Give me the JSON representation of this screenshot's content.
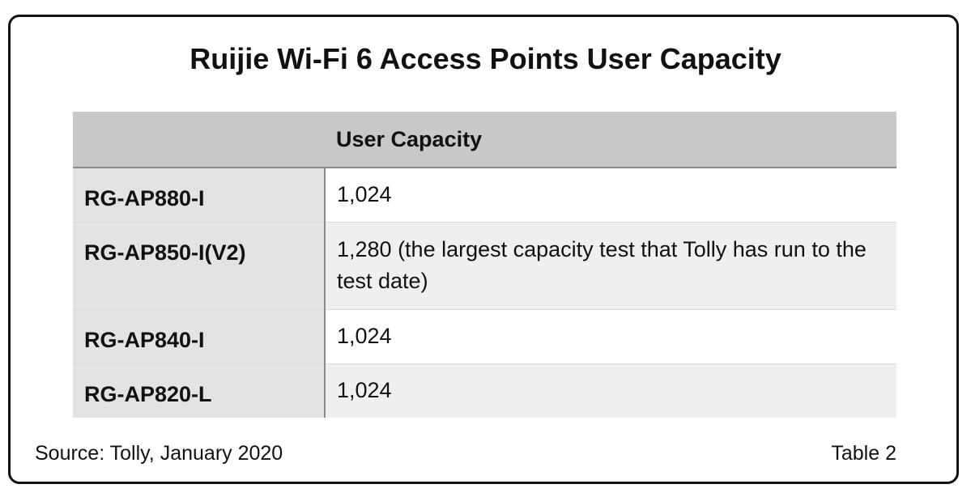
{
  "title": "Ruijie Wi-Fi 6 Access Points User Capacity",
  "table": {
    "header": [
      "",
      "User Capacity"
    ],
    "rows": [
      {
        "model": "RG-AP880-I",
        "capacity": "1,024"
      },
      {
        "model": "RG-AP850-I(V2)",
        "capacity": "1,280 (the largest capacity test that Tolly has run to the test date)"
      },
      {
        "model": "RG-AP840-I",
        "capacity": "1,024"
      },
      {
        "model": "RG-AP820-L",
        "capacity": "1,024"
      }
    ]
  },
  "footer": {
    "source": "Source: Tolly, January 2020",
    "table_label": "Table 2"
  }
}
